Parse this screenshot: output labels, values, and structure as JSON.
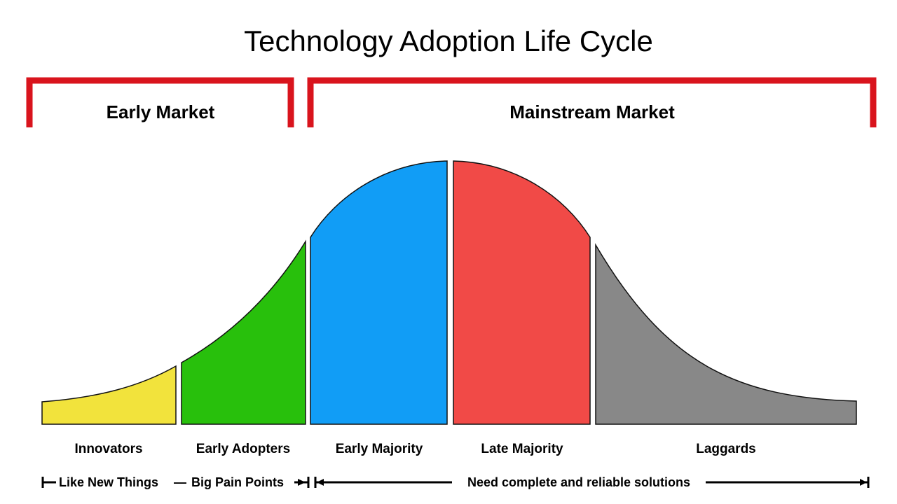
{
  "title": "Technology Adoption Life Cycle",
  "markets": [
    {
      "label": "Early Market"
    },
    {
      "label": "Mainstream Market"
    }
  ],
  "segments": [
    {
      "label": "Innovators",
      "color": "#f2e33c"
    },
    {
      "label": "Early Adopters",
      "color": "#28c00c"
    },
    {
      "label": "Early Majority",
      "color": "#119df6"
    },
    {
      "label": "Late Majority",
      "color": "#f14a47"
    },
    {
      "label": "Laggards",
      "color": "#888888"
    }
  ],
  "notes": {
    "like_new": "Like New Things",
    "separator": "—",
    "pain_points": "Big Pain Points",
    "reliable": "Need complete and reliable solutions"
  },
  "colors": {
    "bracket": "#d9141d",
    "outline": "#111111"
  }
}
